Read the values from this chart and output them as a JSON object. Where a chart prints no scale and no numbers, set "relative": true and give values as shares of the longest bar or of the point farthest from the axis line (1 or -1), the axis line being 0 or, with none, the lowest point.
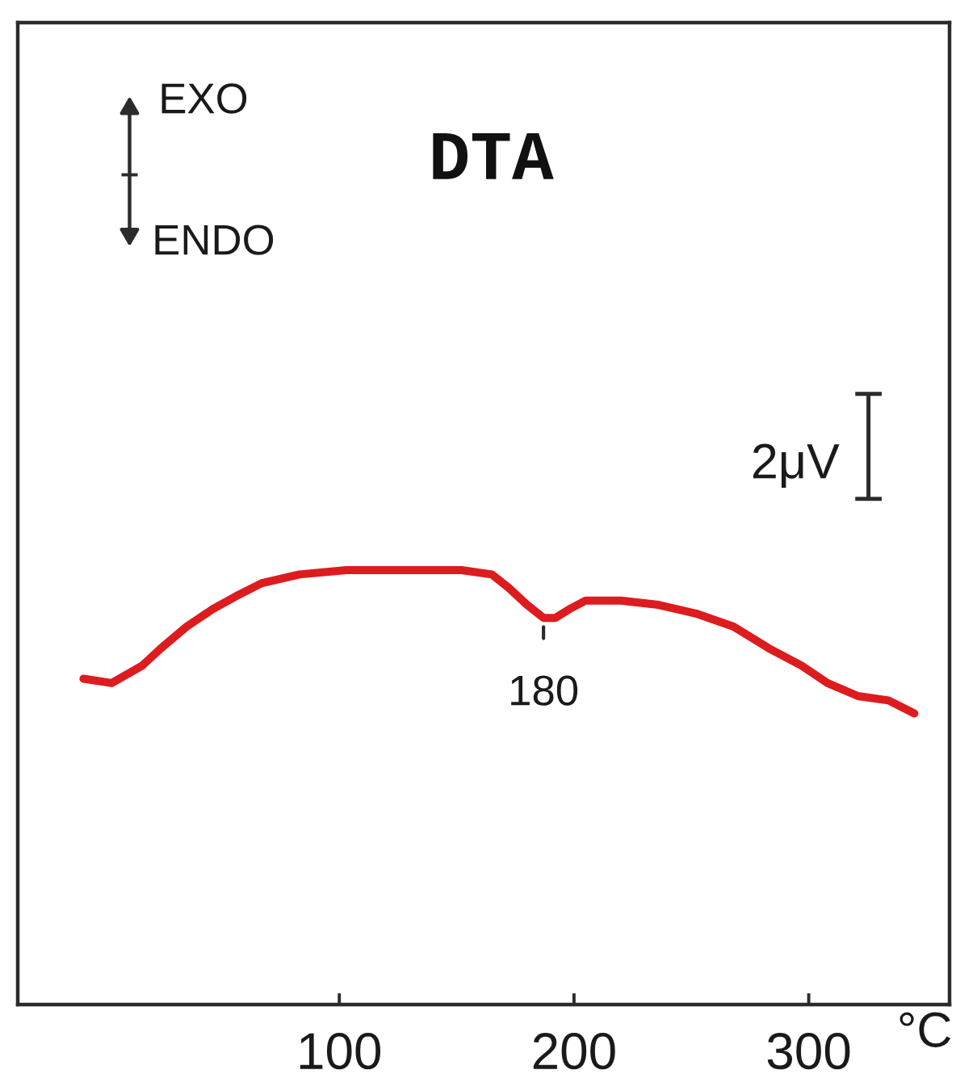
{
  "chart_data": {
    "type": "line",
    "title": "DTA",
    "xlabel": "°C",
    "relative": true,
    "color": "#dc1c1f",
    "x": [
      -9,
      3,
      16,
      24,
      35,
      46,
      56,
      67,
      83,
      103,
      127,
      152,
      165,
      172,
      180,
      187,
      192,
      198,
      205,
      220,
      236,
      252,
      268,
      283,
      297,
      308,
      321,
      334,
      345
    ],
    "values": [
      0.75,
      0.74,
      0.78,
      0.82,
      0.87,
      0.91,
      0.94,
      0.97,
      0.99,
      1.0,
      1.0,
      1.0,
      0.99,
      0.96,
      0.92,
      0.89,
      0.89,
      0.91,
      0.93,
      0.93,
      0.92,
      0.9,
      0.87,
      0.82,
      0.78,
      0.74,
      0.71,
      0.7,
      0.67
    ],
    "xlim": [
      -37,
      360
    ],
    "xticks": [
      100,
      200,
      300
    ],
    "annotations": [
      "EXO",
      "ENDO",
      "2μV",
      {
        "text": "180",
        "x": 187,
        "y": 0.89
      }
    ]
  }
}
